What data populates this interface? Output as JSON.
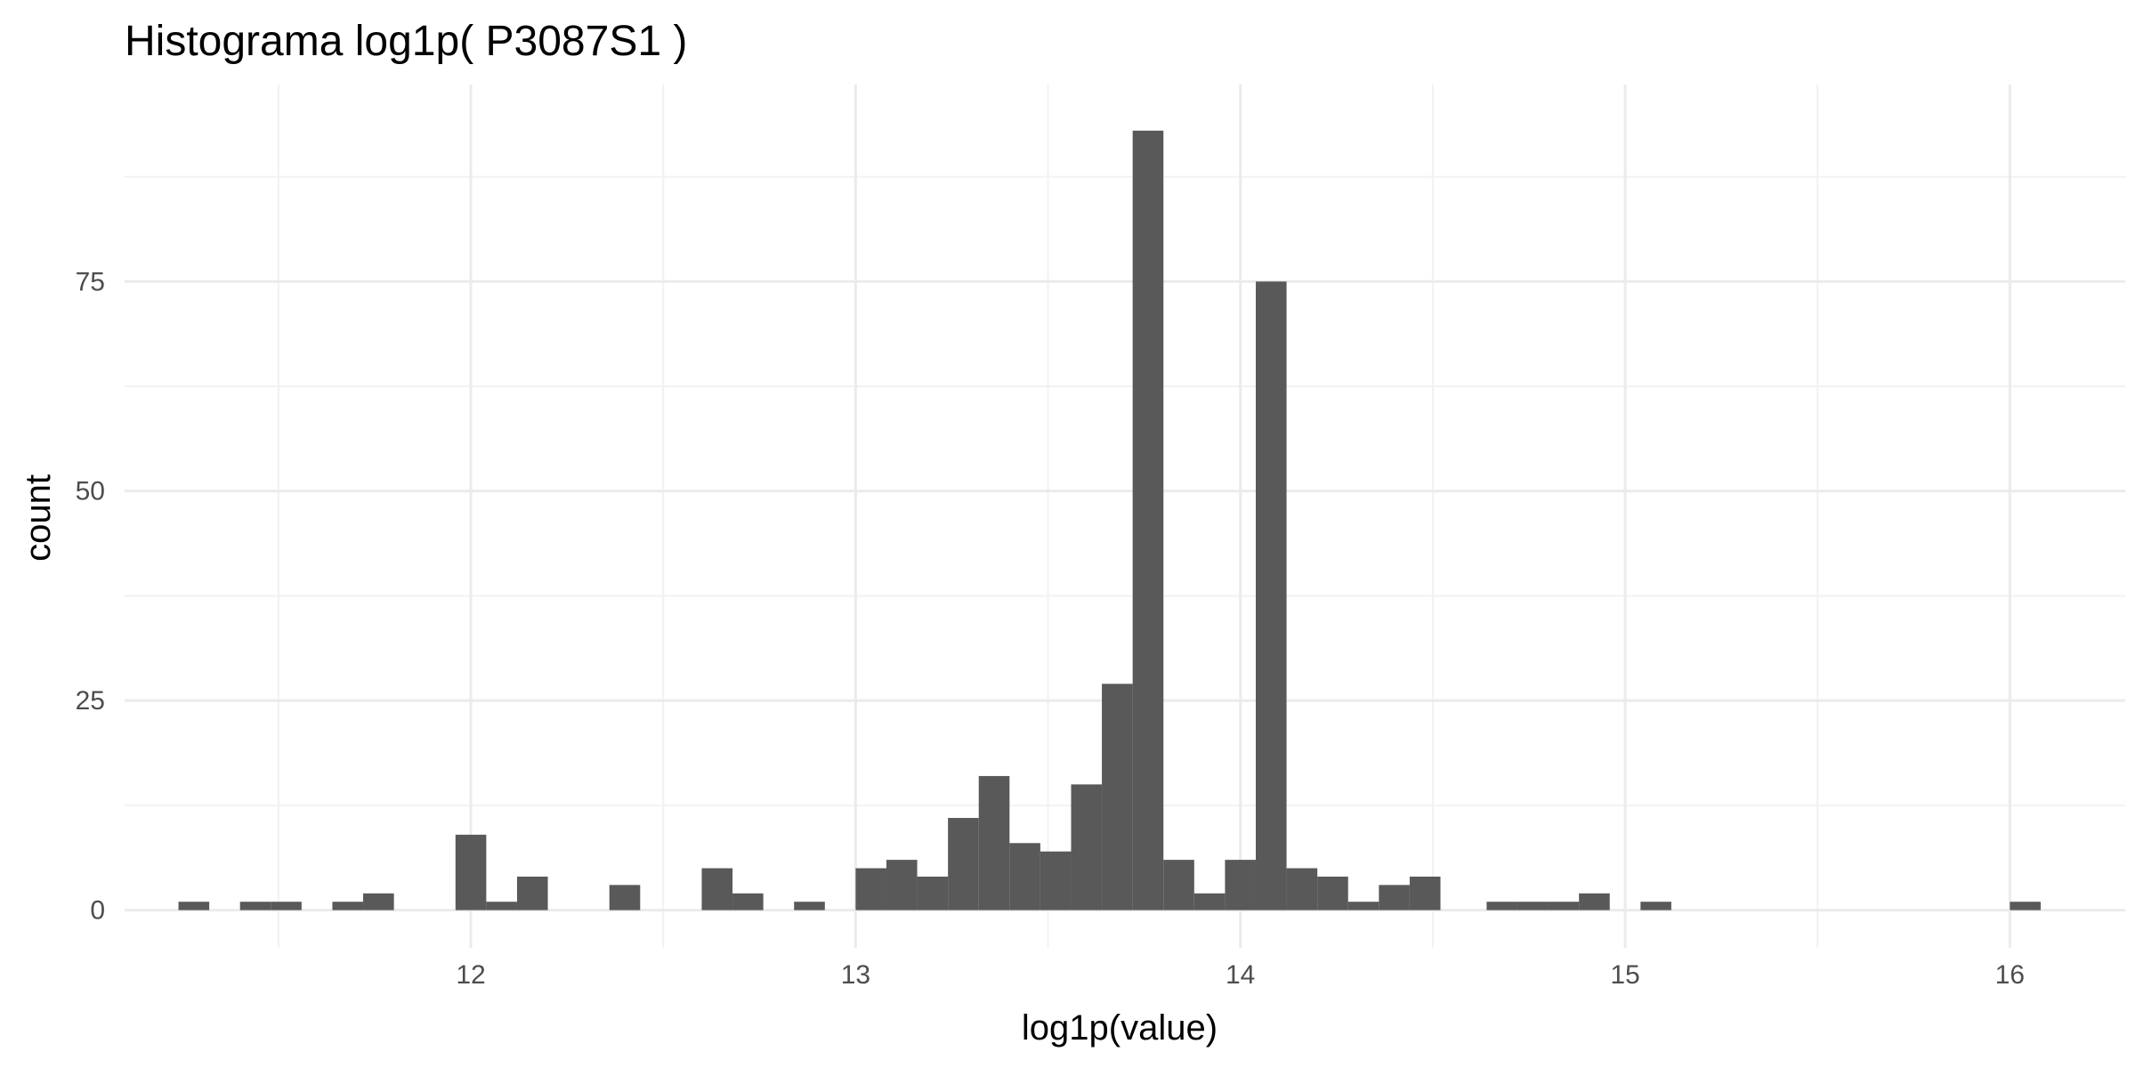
{
  "chart_data": {
    "type": "bar",
    "title": "Histograma log1p( P3087S1 )",
    "xlabel": "log1p(value)",
    "ylabel": "count",
    "bar_color": "#595959",
    "background": "#ffffff",
    "grid": true,
    "bin_width": 0.08,
    "xlim": [
      11.1,
      16.3
    ],
    "ylim": [
      -4.5,
      98.5
    ],
    "x_ticks": [
      12,
      13,
      14,
      15,
      16
    ],
    "y_ticks": [
      0,
      25,
      50,
      75
    ],
    "bins": [
      {
        "x": 11.28,
        "count": 1
      },
      {
        "x": 11.44,
        "count": 1
      },
      {
        "x": 11.52,
        "count": 1
      },
      {
        "x": 11.68,
        "count": 1
      },
      {
        "x": 11.76,
        "count": 2
      },
      {
        "x": 12.0,
        "count": 9
      },
      {
        "x": 12.08,
        "count": 1
      },
      {
        "x": 12.16,
        "count": 4
      },
      {
        "x": 12.4,
        "count": 3
      },
      {
        "x": 12.64,
        "count": 5
      },
      {
        "x": 12.72,
        "count": 2
      },
      {
        "x": 12.88,
        "count": 1
      },
      {
        "x": 13.04,
        "count": 5
      },
      {
        "x": 13.12,
        "count": 6
      },
      {
        "x": 13.2,
        "count": 4
      },
      {
        "x": 13.28,
        "count": 11
      },
      {
        "x": 13.36,
        "count": 16
      },
      {
        "x": 13.44,
        "count": 8
      },
      {
        "x": 13.52,
        "count": 7
      },
      {
        "x": 13.6,
        "count": 15
      },
      {
        "x": 13.68,
        "count": 27
      },
      {
        "x": 13.76,
        "count": 93
      },
      {
        "x": 13.84,
        "count": 6
      },
      {
        "x": 13.92,
        "count": 2
      },
      {
        "x": 14.0,
        "count": 6
      },
      {
        "x": 14.08,
        "count": 75
      },
      {
        "x": 14.16,
        "count": 5
      },
      {
        "x": 14.24,
        "count": 4
      },
      {
        "x": 14.32,
        "count": 1
      },
      {
        "x": 14.4,
        "count": 3
      },
      {
        "x": 14.48,
        "count": 4
      },
      {
        "x": 14.68,
        "count": 1
      },
      {
        "x": 14.76,
        "count": 1
      },
      {
        "x": 14.84,
        "count": 1
      },
      {
        "x": 14.92,
        "count": 2
      },
      {
        "x": 15.08,
        "count": 1
      },
      {
        "x": 16.04,
        "count": 1
      }
    ]
  }
}
